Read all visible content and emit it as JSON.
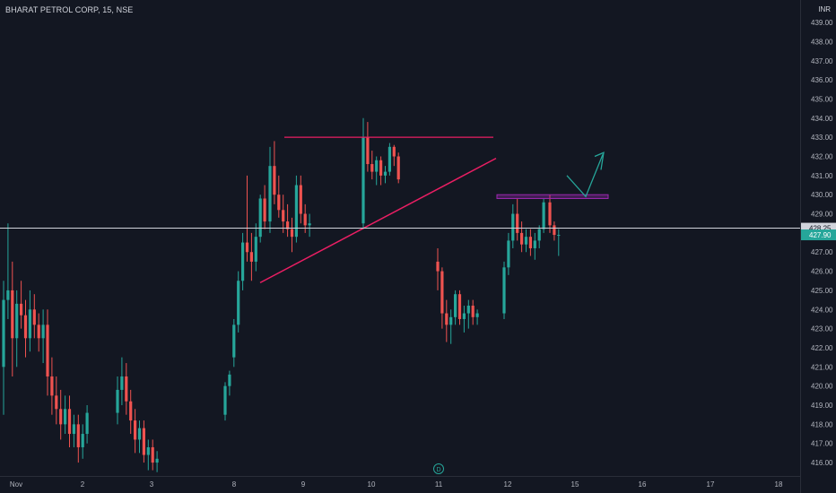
{
  "header": {
    "symbol_line": "BHARAT PETROL CORP, 15, NSE",
    "currency": "INR"
  },
  "colors": {
    "background": "#131722",
    "up": "#26a69a",
    "down": "#ef5350",
    "axis_text": "#b2b5be",
    "trendline": "#e91e63",
    "resistance": "#e91e63",
    "zone": "#9c27b0",
    "arrow": "#26a69a",
    "hline": "#d1d4dc",
    "last_price_bg": "#26a69a"
  },
  "chart_data": {
    "type": "candlestick",
    "symbol": "BHARAT PETROL CORP",
    "interval": "15",
    "exchange": "NSE",
    "currency": "INR",
    "y_ticks": [
      "416.00",
      "417.00",
      "418.00",
      "419.00",
      "420.00",
      "421.00",
      "422.00",
      "423.00",
      "424.00",
      "425.00",
      "426.00",
      "427.00",
      "428.00",
      "429.00",
      "430.00",
      "431.00",
      "432.00",
      "433.00",
      "434.00",
      "435.00",
      "436.00",
      "437.00",
      "438.00",
      "439.00"
    ],
    "ylim": [
      415.3,
      439.8
    ],
    "x_ticks": [
      "Nov",
      "2",
      "3",
      "8",
      "9",
      "10",
      "11",
      "12",
      "15",
      "16",
      "17",
      "18"
    ],
    "horizontal_line_price": "428.25",
    "last_price": "427.90",
    "event_marker": "D",
    "sessions": [
      {
        "label": "Nov",
        "candles": [
          [
            421.0,
            425.5,
            418.5,
            424.5
          ],
          [
            424.5,
            428.5,
            423.5,
            425.0
          ],
          [
            425.0,
            426.5,
            420.5,
            422.5
          ],
          [
            422.5,
            425.0,
            421.0,
            424.3
          ],
          [
            424.3,
            425.5,
            423.0,
            423.7
          ],
          [
            423.7,
            424.5,
            421.5,
            422.5
          ],
          [
            422.5,
            425.0,
            421.8,
            424.0
          ],
          [
            424.0,
            424.8,
            422.5,
            423.2
          ],
          [
            423.2,
            423.8,
            421.8,
            422.5
          ],
          [
            422.5,
            424.0,
            421.2,
            423.2
          ]
        ]
      },
      {
        "label": "2",
        "candles": [
          [
            423.2,
            424.0,
            419.5,
            420.5
          ],
          [
            420.5,
            421.5,
            418.5,
            419.5
          ],
          [
            419.5,
            420.5,
            418.0,
            418.8
          ],
          [
            418.8,
            419.8,
            417.2,
            418.0
          ],
          [
            418.0,
            419.5,
            417.5,
            418.8
          ],
          [
            418.8,
            419.5,
            416.8,
            417.5
          ],
          [
            417.5,
            418.5,
            416.8,
            418.0
          ],
          [
            418.0,
            418.5,
            416.0,
            416.8
          ],
          [
            416.8,
            418.0,
            416.2,
            417.5
          ],
          [
            417.5,
            419.0,
            417.0,
            418.6
          ]
        ]
      },
      {
        "label": "3",
        "candles": [
          [
            418.6,
            420.5,
            418.0,
            419.8
          ],
          [
            419.8,
            421.5,
            419.0,
            420.5
          ],
          [
            420.5,
            421.2,
            418.5,
            419.2
          ],
          [
            419.2,
            419.8,
            417.5,
            418.2
          ],
          [
            418.2,
            418.8,
            416.5,
            417.2
          ],
          [
            417.2,
            418.2,
            416.5,
            417.8
          ],
          [
            417.8,
            418.2,
            416.0,
            416.4
          ],
          [
            416.4,
            417.2,
            415.6,
            416.8
          ],
          [
            416.8,
            417.2,
            415.6,
            416.0
          ],
          [
            416.0,
            416.6,
            415.5,
            416.2
          ]
        ]
      },
      {
        "label": "8",
        "candles": [
          [
            418.5,
            420.2,
            418.2,
            420.0
          ],
          [
            420.0,
            420.8,
            419.5,
            420.6
          ],
          [
            421.5,
            423.5,
            421.0,
            423.2
          ],
          [
            423.2,
            426.0,
            422.8,
            425.5
          ],
          [
            425.5,
            428.0,
            425.0,
            427.5
          ],
          [
            427.5,
            431.0,
            426.5,
            427.0
          ],
          [
            427.0,
            428.0,
            425.5,
            426.5
          ],
          [
            426.5,
            428.5,
            426.0,
            427.8
          ],
          [
            427.8,
            430.0,
            427.5,
            429.8
          ],
          [
            429.8,
            430.5,
            428.2,
            428.6
          ]
        ]
      },
      {
        "label": "9",
        "candles": [
          [
            428.6,
            432.5,
            428.0,
            431.5
          ],
          [
            431.5,
            432.8,
            429.5,
            430.0
          ],
          [
            430.0,
            431.0,
            428.8,
            429.2
          ],
          [
            429.2,
            430.0,
            428.0,
            428.6
          ],
          [
            428.6,
            429.5,
            427.8,
            428.2
          ],
          [
            428.2,
            428.8,
            427.0,
            427.8
          ],
          [
            427.8,
            431.0,
            427.5,
            430.5
          ],
          [
            430.5,
            431.0,
            428.5,
            429.0
          ],
          [
            429.0,
            429.5,
            428.0,
            428.4
          ],
          [
            428.4,
            429.0,
            427.8,
            428.5
          ]
        ]
      },
      {
        "label": "10",
        "candles": [
          [
            428.5,
            434.0,
            428.2,
            433.0
          ],
          [
            433.0,
            433.8,
            431.2,
            431.6
          ],
          [
            431.6,
            432.3,
            430.8,
            431.2
          ],
          [
            431.2,
            432.0,
            430.5,
            431.8
          ],
          [
            431.8,
            432.0,
            430.5,
            431.0
          ],
          [
            431.0,
            431.5,
            430.6,
            431.2
          ],
          [
            431.2,
            432.7,
            431.0,
            432.5
          ],
          [
            432.5,
            432.6,
            431.5,
            432.0
          ],
          [
            432.0,
            432.2,
            430.6,
            430.8
          ]
        ]
      },
      {
        "label": "11",
        "candles": [
          [
            426.5,
            427.2,
            425.0,
            426.0
          ],
          [
            426.0,
            426.2,
            423.0,
            423.8
          ],
          [
            423.8,
            424.5,
            422.3,
            423.2
          ],
          [
            423.2,
            424.0,
            422.2,
            423.6
          ],
          [
            423.6,
            425.0,
            423.2,
            424.8
          ],
          [
            424.8,
            425.0,
            423.2,
            423.5
          ],
          [
            423.5,
            424.2,
            422.8,
            423.8
          ],
          [
            423.8,
            424.5,
            423.0,
            424.2
          ],
          [
            424.2,
            424.5,
            423.2,
            423.6
          ],
          [
            423.6,
            424.0,
            423.2,
            423.8
          ]
        ]
      },
      {
        "label": "12",
        "candles": [
          [
            423.8,
            426.5,
            423.5,
            426.2
          ],
          [
            426.2,
            428.0,
            425.8,
            427.6
          ],
          [
            427.6,
            429.5,
            427.2,
            429.0
          ],
          [
            429.0,
            429.8,
            427.6,
            428.0
          ],
          [
            428.0,
            428.6,
            427.0,
            427.4
          ],
          [
            427.4,
            428.2,
            427.0,
            427.8
          ],
          [
            427.8,
            428.2,
            426.8,
            427.2
          ],
          [
            427.2,
            428.0,
            426.6,
            427.6
          ],
          [
            427.6,
            428.4,
            427.2,
            428.2
          ],
          [
            428.2,
            429.8,
            428.0,
            429.6
          ]
        ]
      },
      {
        "label": "15",
        "candles": [
          [
            429.6,
            430.0,
            428.0,
            428.4
          ],
          [
            428.4,
            428.6,
            427.6,
            427.9
          ],
          [
            427.9,
            428.2,
            426.8,
            427.9
          ]
        ]
      }
    ],
    "drawings": [
      {
        "kind": "resistance",
        "from_price": 433.0,
        "to_price": 433.0,
        "from_label": "8",
        "to_label": "11"
      },
      {
        "kind": "trendline",
        "from_price": 425.4,
        "to_price": 431.9,
        "from_label": "8",
        "to_label": "11"
      },
      {
        "kind": "zone",
        "low": 429.8,
        "high": 430.0
      },
      {
        "kind": "arrow",
        "points": [
          429.7,
          431.0,
          430.0,
          432.1
        ]
      }
    ]
  }
}
